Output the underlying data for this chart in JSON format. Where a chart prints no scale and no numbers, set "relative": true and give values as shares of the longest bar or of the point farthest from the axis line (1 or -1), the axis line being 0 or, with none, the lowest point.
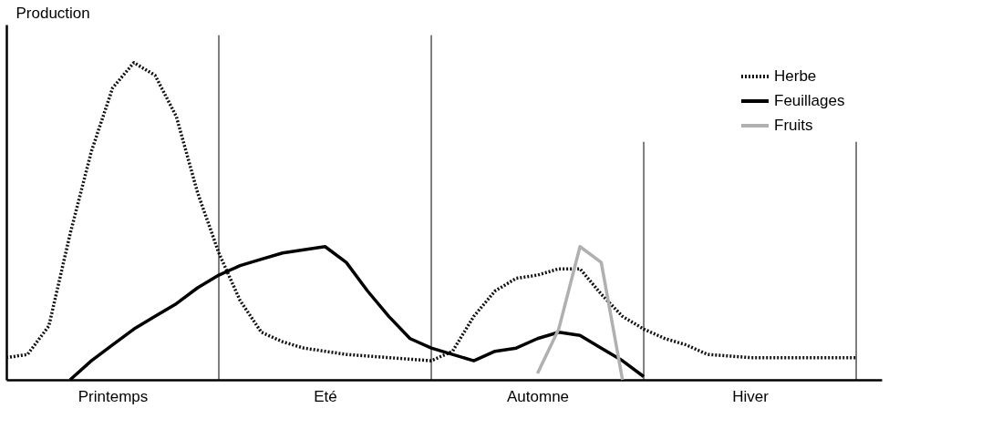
{
  "chart_data": {
    "type": "line",
    "relative": true,
    "ylabel": "Production",
    "categories": [
      null,
      null,
      null,
      null,
      null,
      "Printemps",
      null,
      null,
      null,
      null,
      null,
      null,
      null,
      null,
      null,
      "Eté",
      null,
      null,
      null,
      null,
      null,
      null,
      null,
      null,
      null,
      "Automne",
      null,
      null,
      null,
      null,
      null,
      null,
      null,
      null,
      null,
      "Hiver",
      null,
      null,
      null,
      null,
      null
    ],
    "tick_labels": "x",
    "grid": "x",
    "legend": "top right",
    "marker": "none",
    "series": [
      {
        "name": "Herbe",
        "color": "#111111",
        "line_style": "dotted",
        "values": [
          0.07,
          0.08,
          0.17,
          0.46,
          0.72,
          0.92,
          1.0,
          0.96,
          0.83,
          0.59,
          0.4,
          0.25,
          0.15,
          0.12,
          0.1,
          0.09,
          0.08,
          0.075,
          0.07,
          0.065,
          0.06,
          0.09,
          0.2,
          0.28,
          0.32,
          0.33,
          0.35,
          0.35,
          0.27,
          0.2,
          0.16,
          0.13,
          0.11,
          0.08,
          0.075,
          0.07,
          0.07,
          0.07,
          0.07,
          0.07,
          0.07
        ]
      },
      {
        "name": "Feuillages",
        "color": "#000000",
        "line_style": "solid",
        "values": [
          null,
          null,
          null,
          0,
          0.06,
          0.11,
          0.16,
          0.2,
          0.24,
          0.29,
          0.33,
          0.36,
          0.38,
          0.4,
          0.41,
          0.42,
          0.37,
          0.28,
          0.2,
          0.13,
          0.1,
          0.08,
          0.06,
          0.09,
          0.1,
          0.13,
          0.15,
          0.14,
          0.1,
          0.06,
          0.01,
          null,
          null,
          null,
          null,
          null,
          null,
          null,
          null,
          null,
          null
        ]
      },
      {
        "name": "Fruits",
        "color": "#b0b0b0",
        "line_style": "solid",
        "values": [
          null,
          null,
          null,
          null,
          null,
          null,
          null,
          null,
          null,
          null,
          null,
          null,
          null,
          null,
          null,
          null,
          null,
          null,
          null,
          null,
          null,
          null,
          null,
          null,
          null,
          0.02,
          0.16,
          0.42,
          0.37,
          0,
          null,
          null,
          null,
          null,
          null,
          null,
          null,
          null,
          null,
          null,
          null
        ]
      }
    ]
  }
}
